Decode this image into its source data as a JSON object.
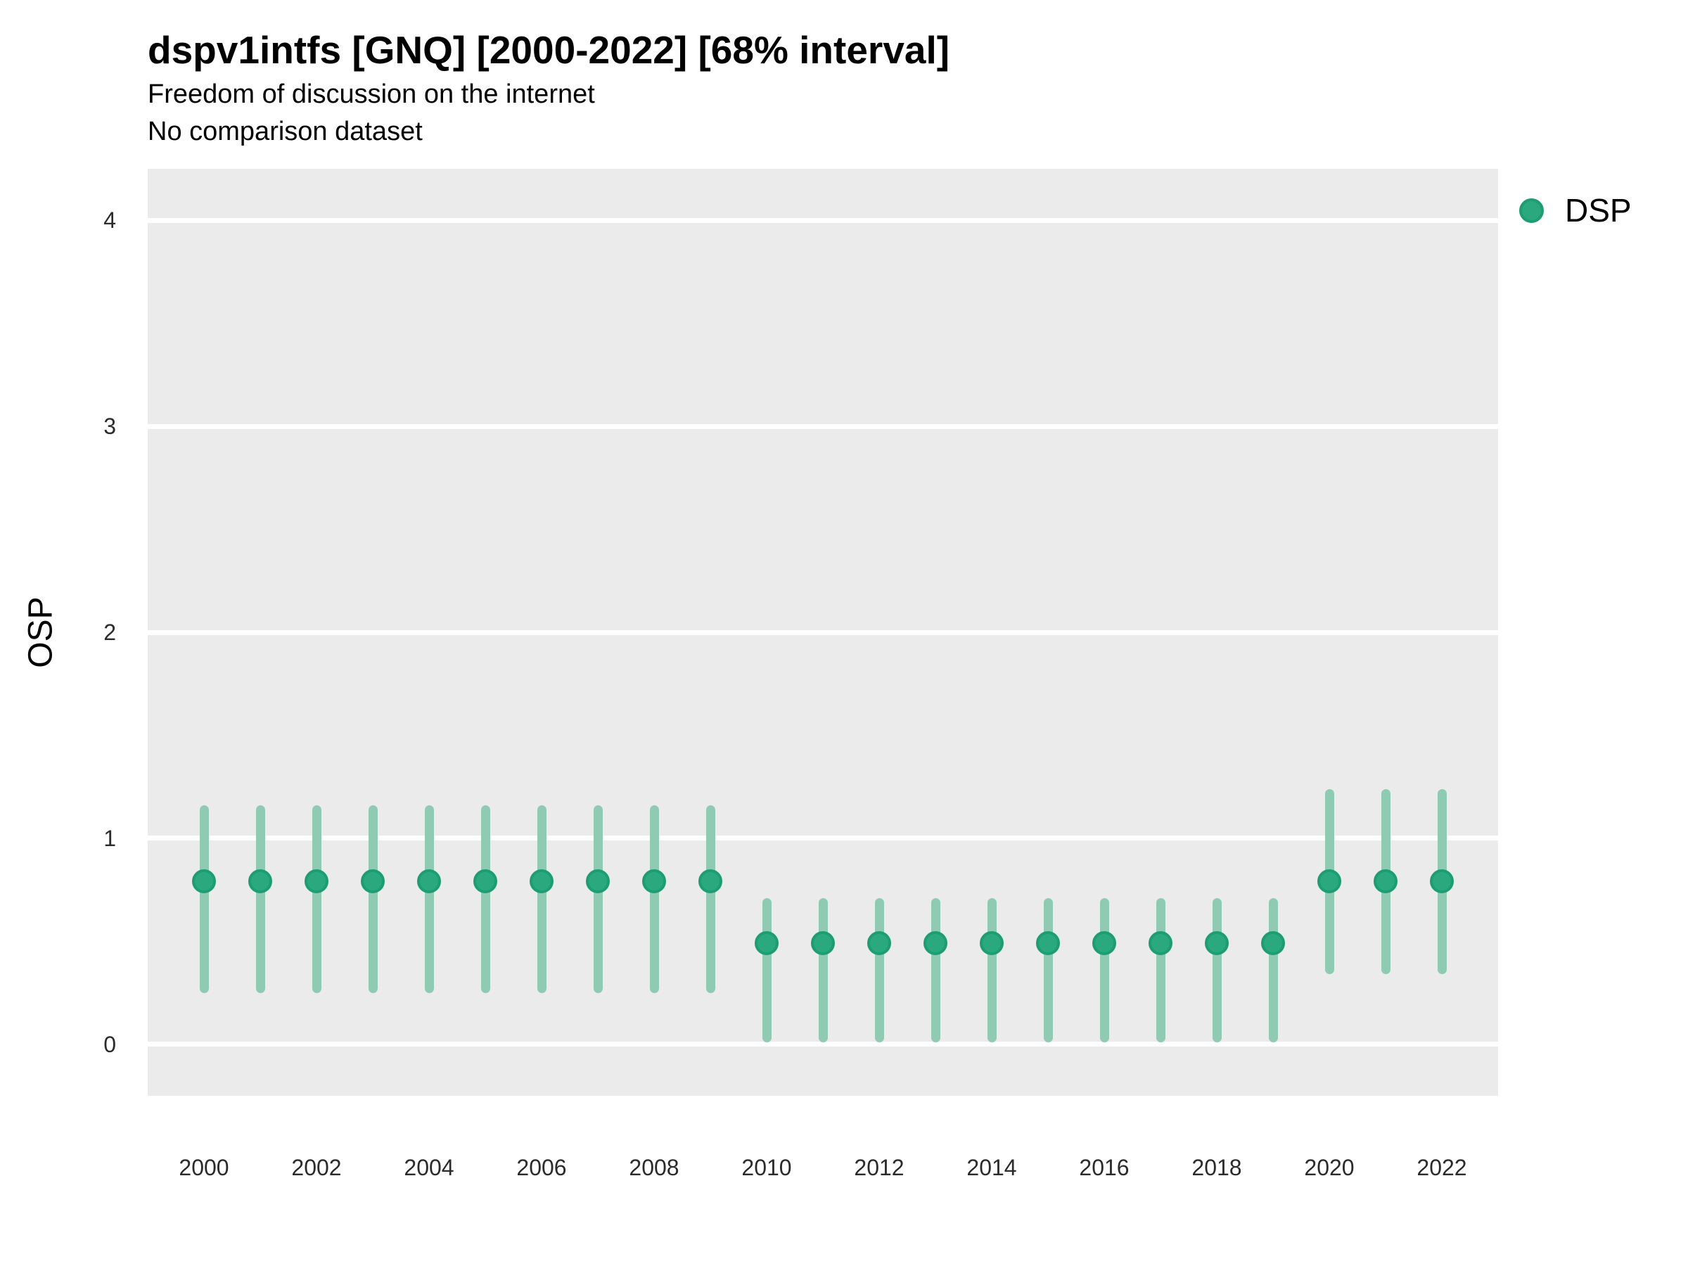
{
  "header": {
    "title": "dspv1intfs [GNQ] [2000-2022] [68% interval]",
    "subtitle": "Freedom of discussion on the internet",
    "note": "No comparison dataset"
  },
  "legend": {
    "items": [
      {
        "label": "DSP",
        "color": "#2aa87e"
      }
    ]
  },
  "colors": {
    "panel_bg": "#ebebeb",
    "grid": "#ffffff",
    "point": "#2aa87e",
    "point_border": "#1e9c73",
    "interval": "#8fcbb3"
  },
  "chart_data": {
    "type": "scatter",
    "title": "dspv1intfs [GNQ] [2000-2022] [68% interval]",
    "subtitle": "Freedom of discussion on the internet",
    "note": "No comparison dataset",
    "interval": "68%",
    "xlabel": "",
    "ylabel": "OSP",
    "xlim": [
      1999,
      2023
    ],
    "ylim": [
      -0.25,
      4.25
    ],
    "yticks": [
      0,
      1,
      2,
      3,
      4
    ],
    "xticks": [
      2000,
      2002,
      2004,
      2006,
      2008,
      2010,
      2012,
      2014,
      2016,
      2018,
      2020,
      2022
    ],
    "grid": "horizontal major gridlines, white on gray panel",
    "legend_position": "right-top",
    "series": [
      {
        "name": "DSP",
        "color": "#2aa87e",
        "interval_color": "#8fcbb3",
        "points": [
          {
            "x": 2000,
            "y": 0.79,
            "lo": 0.25,
            "hi": 1.16
          },
          {
            "x": 2001,
            "y": 0.79,
            "lo": 0.25,
            "hi": 1.16
          },
          {
            "x": 2002,
            "y": 0.79,
            "lo": 0.25,
            "hi": 1.16
          },
          {
            "x": 2003,
            "y": 0.79,
            "lo": 0.25,
            "hi": 1.16
          },
          {
            "x": 2004,
            "y": 0.79,
            "lo": 0.25,
            "hi": 1.16
          },
          {
            "x": 2005,
            "y": 0.79,
            "lo": 0.25,
            "hi": 1.16
          },
          {
            "x": 2006,
            "y": 0.79,
            "lo": 0.25,
            "hi": 1.16
          },
          {
            "x": 2007,
            "y": 0.79,
            "lo": 0.25,
            "hi": 1.16
          },
          {
            "x": 2008,
            "y": 0.79,
            "lo": 0.25,
            "hi": 1.16
          },
          {
            "x": 2009,
            "y": 0.79,
            "lo": 0.25,
            "hi": 1.16
          },
          {
            "x": 2010,
            "y": 0.49,
            "lo": 0.01,
            "hi": 0.71
          },
          {
            "x": 2011,
            "y": 0.49,
            "lo": 0.01,
            "hi": 0.71
          },
          {
            "x": 2012,
            "y": 0.49,
            "lo": 0.01,
            "hi": 0.71
          },
          {
            "x": 2013,
            "y": 0.49,
            "lo": 0.01,
            "hi": 0.71
          },
          {
            "x": 2014,
            "y": 0.49,
            "lo": 0.01,
            "hi": 0.71
          },
          {
            "x": 2015,
            "y": 0.49,
            "lo": 0.01,
            "hi": 0.71
          },
          {
            "x": 2016,
            "y": 0.49,
            "lo": 0.01,
            "hi": 0.71
          },
          {
            "x": 2017,
            "y": 0.49,
            "lo": 0.01,
            "hi": 0.71
          },
          {
            "x": 2018,
            "y": 0.49,
            "lo": 0.01,
            "hi": 0.71
          },
          {
            "x": 2019,
            "y": 0.49,
            "lo": 0.01,
            "hi": 0.71
          },
          {
            "x": 2020,
            "y": 0.79,
            "lo": 0.34,
            "hi": 1.24
          },
          {
            "x": 2021,
            "y": 0.79,
            "lo": 0.34,
            "hi": 1.24
          },
          {
            "x": 2022,
            "y": 0.79,
            "lo": 0.34,
            "hi": 1.24
          }
        ]
      }
    ]
  }
}
